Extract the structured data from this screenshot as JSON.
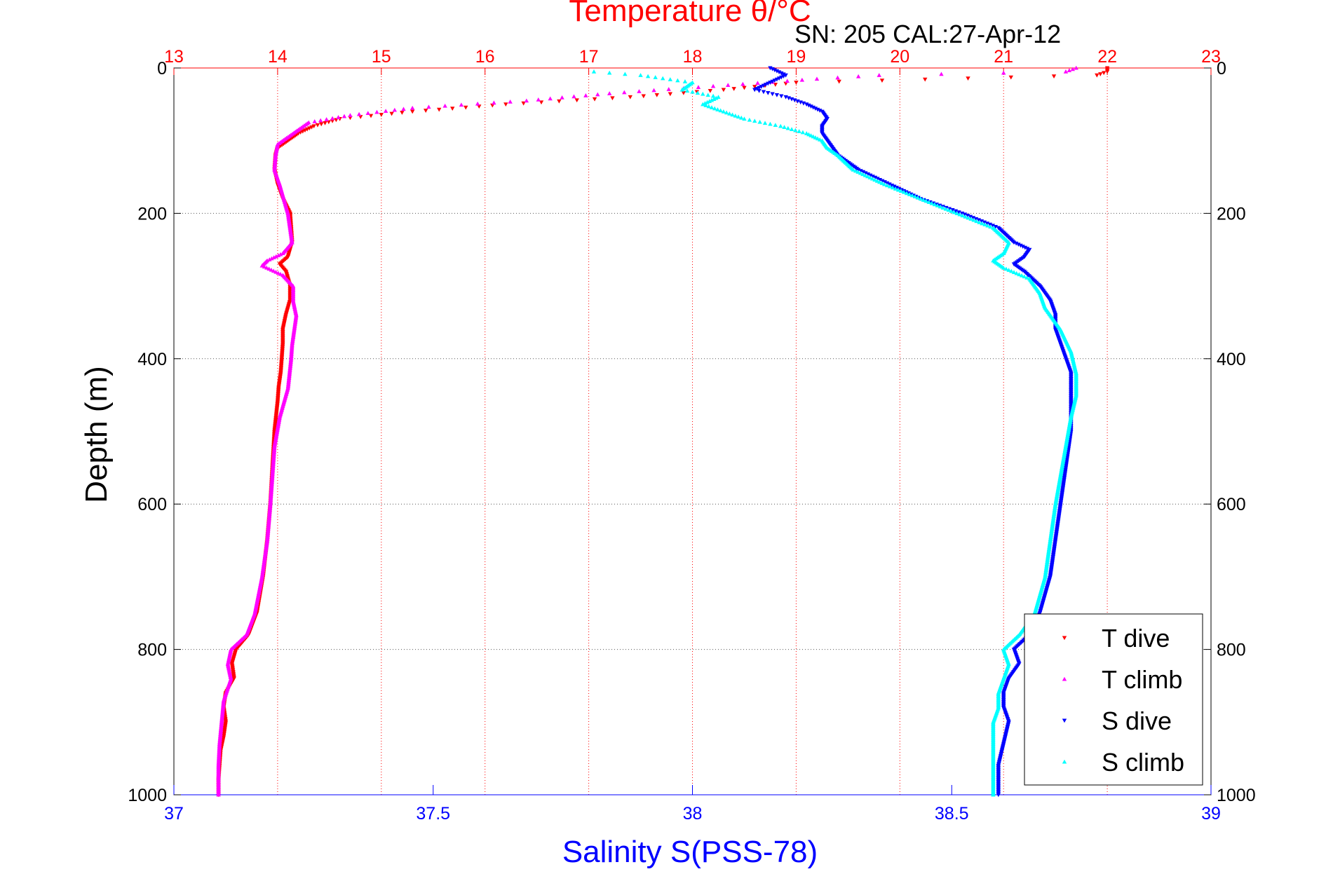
{
  "chart_data": {
    "type": "scatter",
    "title": "Temperature θ/°C",
    "annotation": "SN: 205  CAL:27-Apr-12",
    "xlabel_top": "Temperature θ/°C",
    "xlabel_bottom": "Salinity S(PSS-78)",
    "ylabel": "Depth (m)",
    "ylim": [
      0,
      1000
    ],
    "y_reversed": true,
    "y_ticks": [
      "0",
      "200",
      "400",
      "600",
      "800",
      "1000"
    ],
    "x_top_range": [
      13,
      23
    ],
    "x_top_ticks": [
      "13",
      "14",
      "15",
      "16",
      "17",
      "18",
      "19",
      "20",
      "21",
      "22",
      "23"
    ],
    "x_bottom_range": [
      37,
      39
    ],
    "x_bottom_ticks": [
      "37",
      "37.5",
      "38",
      "38.5",
      "39"
    ],
    "grid": true,
    "legend_position": "bottom-right",
    "colors": {
      "t_dive": "#ff0000",
      "t_climb": "#ff00ff",
      "s_dive": "#0000ff",
      "s_climb": "#00ffff",
      "top_axis": "#ff0000",
      "bottom_axis": "#0000ff"
    },
    "series": [
      {
        "name": "T dive",
        "axis": "top",
        "marker": "triangle-down",
        "color": "#ff0000",
        "depth": [
          0,
          5,
          10,
          20,
          30,
          40,
          50,
          60,
          70,
          80,
          90,
          100,
          110,
          120,
          140,
          160,
          180,
          200,
          220,
          240,
          260,
          270,
          280,
          300,
          320,
          340,
          360,
          380,
          400,
          420,
          440,
          460,
          500,
          550,
          600,
          650,
          700,
          750,
          780,
          800,
          820,
          840,
          860,
          880,
          900,
          920,
          940,
          960,
          980,
          1000
        ],
        "value": [
          22.0,
          22.0,
          21.9,
          19.0,
          18.3,
          17.4,
          16.2,
          15.3,
          14.6,
          14.35,
          14.2,
          14.1,
          14.0,
          13.98,
          13.97,
          14.0,
          14.05,
          14.12,
          14.13,
          14.14,
          14.1,
          14.02,
          14.08,
          14.12,
          14.12,
          14.08,
          14.05,
          14.05,
          14.04,
          14.03,
          14.01,
          14.0,
          13.97,
          13.95,
          13.93,
          13.9,
          13.86,
          13.8,
          13.72,
          13.6,
          13.56,
          13.58,
          13.5,
          13.48,
          13.5,
          13.48,
          13.45,
          13.44,
          13.43,
          13.43
        ]
      },
      {
        "name": "T climb",
        "axis": "top",
        "marker": "triangle-up",
        "color": "#ff00ff",
        "depth": [
          0,
          5,
          10,
          15,
          25,
          35,
          45,
          55,
          65,
          75,
          85,
          95,
          105,
          120,
          140,
          160,
          180,
          200,
          220,
          240,
          255,
          265,
          272,
          285,
          300,
          320,
          340,
          360,
          380,
          400,
          440,
          480,
          520,
          560,
          600,
          650,
          700,
          750,
          780,
          800,
          820,
          840,
          870,
          900,
          930,
          960,
          1000
        ],
        "value": [
          21.7,
          21.6,
          19.8,
          19.2,
          18.2,
          17.2,
          16.4,
          15.3,
          14.7,
          14.3,
          14.2,
          14.1,
          14.0,
          13.98,
          13.97,
          14.02,
          14.06,
          14.1,
          14.12,
          14.14,
          14.05,
          13.9,
          13.85,
          14.05,
          14.15,
          14.15,
          14.18,
          14.16,
          14.14,
          14.13,
          14.1,
          14.02,
          13.97,
          13.95,
          13.93,
          13.9,
          13.85,
          13.78,
          13.7,
          13.55,
          13.52,
          13.55,
          13.48,
          13.46,
          13.44,
          13.43,
          13.43
        ]
      },
      {
        "name": "S dive",
        "axis": "bottom",
        "marker": "triangle-down",
        "color": "#0000ff",
        "depth": [
          0,
          10,
          20,
          30,
          40,
          50,
          60,
          70,
          80,
          90,
          100,
          110,
          120,
          140,
          160,
          180,
          200,
          220,
          240,
          250,
          260,
          270,
          280,
          300,
          320,
          340,
          360,
          380,
          400,
          420,
          440,
          460,
          480,
          500,
          550,
          600,
          650,
          700,
          750,
          780,
          800,
          820,
          840,
          860,
          880,
          900,
          930,
          960,
          1000
        ],
        "value": [
          38.15,
          38.18,
          38.15,
          38.12,
          38.18,
          38.22,
          38.25,
          38.26,
          38.25,
          38.25,
          38.26,
          38.27,
          38.28,
          38.32,
          38.38,
          38.44,
          38.52,
          38.59,
          38.62,
          38.65,
          38.64,
          38.62,
          38.64,
          38.67,
          38.69,
          38.7,
          38.7,
          38.71,
          38.72,
          38.73,
          38.73,
          38.73,
          38.73,
          38.73,
          38.72,
          38.71,
          38.7,
          38.69,
          38.67,
          38.65,
          38.62,
          38.63,
          38.61,
          38.6,
          38.6,
          38.61,
          38.6,
          38.59,
          38.59
        ]
      },
      {
        "name": "S climb",
        "axis": "bottom",
        "marker": "triangle-up",
        "color": "#00ffff",
        "depth": [
          5,
          10,
          20,
          30,
          40,
          50,
          60,
          70,
          80,
          90,
          100,
          110,
          120,
          140,
          160,
          180,
          200,
          220,
          240,
          255,
          265,
          275,
          290,
          310,
          330,
          360,
          390,
          420,
          450,
          480,
          520,
          560,
          600,
          650,
          700,
          750,
          780,
          800,
          820,
          840,
          860,
          880,
          900,
          930,
          960,
          1000
        ],
        "value": [
          37.81,
          37.9,
          38.0,
          37.98,
          38.05,
          38.02,
          38.06,
          38.1,
          38.17,
          38.22,
          38.25,
          38.26,
          38.28,
          38.31,
          38.37,
          38.44,
          38.51,
          38.58,
          38.61,
          38.6,
          38.58,
          38.6,
          38.65,
          38.67,
          38.68,
          38.71,
          38.73,
          38.74,
          38.74,
          38.73,
          38.72,
          38.71,
          38.7,
          38.69,
          38.68,
          38.66,
          38.63,
          38.6,
          38.61,
          38.6,
          38.59,
          38.59,
          38.58,
          38.58,
          38.58,
          38.58
        ]
      }
    ]
  }
}
